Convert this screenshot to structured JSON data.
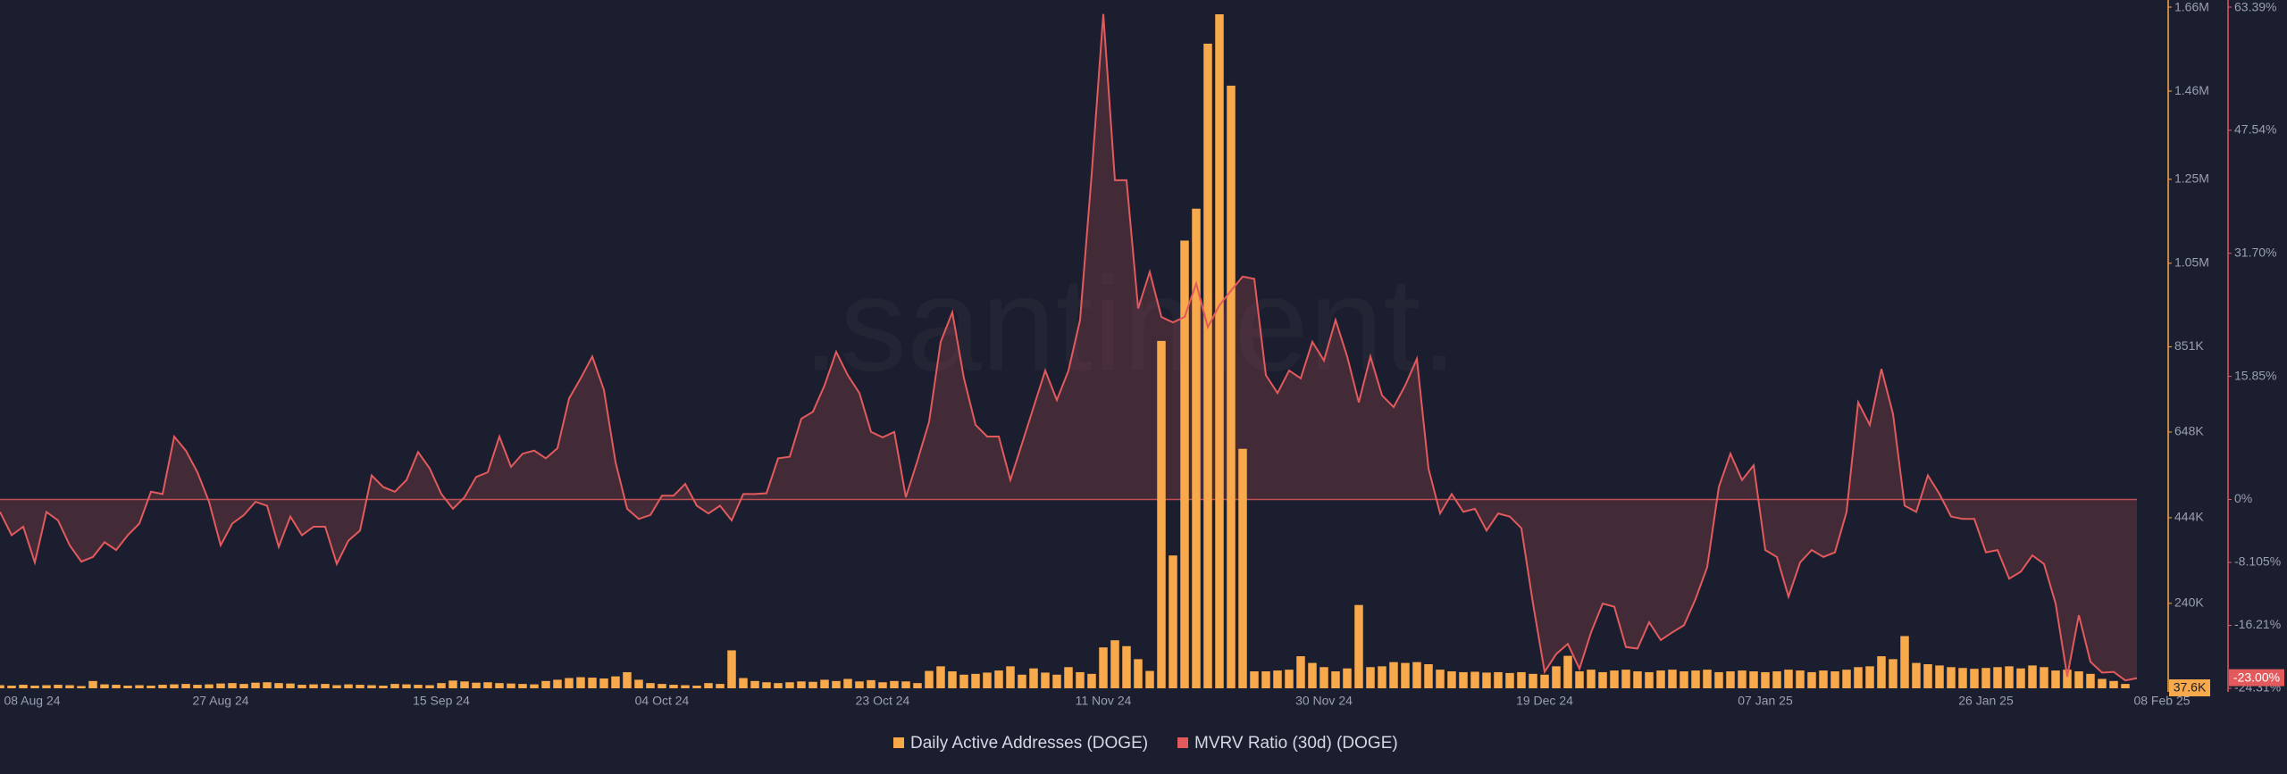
{
  "chart_data": {
    "type": "bar-line",
    "watermark": ".santiment.",
    "categories": [
      "08 Aug 24",
      null,
      null,
      null,
      null,
      null,
      null,
      null,
      null,
      null,
      null,
      null,
      null,
      null,
      null,
      null,
      null,
      null,
      null,
      "27 Aug 24",
      null,
      null,
      null,
      null,
      null,
      null,
      null,
      null,
      null,
      null,
      null,
      null,
      null,
      null,
      null,
      null,
      null,
      null,
      "15 Sep 24",
      null,
      null,
      null,
      null,
      null,
      null,
      null,
      null,
      null,
      null,
      null,
      null,
      null,
      null,
      null,
      null,
      null,
      null,
      "04 Oct 24",
      null,
      null,
      null,
      null,
      null,
      null,
      null,
      null,
      null,
      null,
      null,
      null,
      null,
      null,
      null,
      null,
      null,
      null,
      "23 Oct 24",
      null,
      null,
      null,
      null,
      null,
      null,
      null,
      null,
      null,
      null,
      null,
      null,
      null,
      null,
      null,
      null,
      null,
      null,
      "11 Nov 24",
      null,
      null,
      null,
      null,
      null,
      null,
      null,
      null,
      null,
      null,
      null,
      null,
      null,
      null,
      null,
      null,
      null,
      null,
      "30 Nov 24",
      null,
      null,
      null,
      null,
      null,
      null,
      null,
      null,
      null,
      null,
      null,
      null,
      null,
      null,
      null,
      null,
      null,
      null,
      "19 Dec 24",
      null,
      null,
      null,
      null,
      null,
      null,
      null,
      null,
      null,
      null,
      null,
      null,
      null,
      null,
      null,
      null,
      null,
      null,
      "07 Jan 25",
      null,
      null,
      null,
      null,
      null,
      null,
      null,
      null,
      null,
      null,
      null,
      null,
      null,
      null,
      null,
      null,
      null,
      null,
      "26 Jan 25",
      null,
      null,
      null,
      null,
      null,
      null,
      null,
      null,
      null,
      null,
      null,
      null,
      "08 Feb 25"
    ],
    "series": [
      {
        "name": "Daily Active Addresses (DOGE)",
        "type": "bar",
        "axis": "y",
        "color": "#f7a94b",
        "last_value_label": "37.6K",
        "values": [
          45000,
          44000,
          46000,
          44000,
          45000,
          46000,
          45000,
          43000,
          55000,
          47000,
          46000,
          44000,
          45000,
          44000,
          46000,
          47000,
          48000,
          46000,
          47000,
          49000,
          50000,
          48000,
          51000,
          52000,
          50000,
          49000,
          46000,
          47000,
          48000,
          45000,
          47000,
          46000,
          45000,
          44000,
          48000,
          47000,
          46000,
          45000,
          50000,
          56000,
          54000,
          51000,
          52000,
          50000,
          49000,
          48000,
          47000,
          55000,
          58000,
          62000,
          64000,
          63000,
          61000,
          66000,
          76000,
          58000,
          50000,
          48000,
          46000,
          45000,
          44000,
          50000,
          48000,
          128000,
          62000,
          55000,
          52000,
          50000,
          52000,
          54000,
          53000,
          58000,
          55000,
          60000,
          54000,
          57000,
          52000,
          55000,
          54000,
          50000,
          79000,
          90000,
          78000,
          70000,
          72000,
          75000,
          80000,
          90000,
          70000,
          85000,
          75000,
          70000,
          88000,
          76000,
          72000,
          135000,
          152000,
          138000,
          107000,
          79000,
          865000,
          354000,
          1104000,
          1180000,
          1573000,
          1643000,
          1473000,
          608000,
          78000,
          78000,
          80000,
          82000,
          114000,
          98000,
          88000,
          78000,
          85000,
          236000,
          88000,
          90000,
          100000,
          98000,
          100000,
          95000,
          82000,
          78000,
          76000,
          77000,
          75000,
          76000,
          74000,
          76000,
          72000,
          70000,
          90000,
          115000,
          78000,
          82000,
          76000,
          80000,
          82000,
          78000,
          76000,
          80000,
          82000,
          78000,
          80000,
          82000,
          76000,
          78000,
          80000,
          78000,
          76000,
          78000,
          82000,
          80000,
          76000,
          80000,
          78000,
          82000,
          88000,
          90000,
          114000,
          107000,
          162000,
          98000,
          95000,
          92000,
          88000,
          86000,
          84000,
          86000,
          88000,
          90000,
          85000,
          92000,
          88000,
          80000,
          82000,
          78000,
          72000,
          60000,
          55000,
          48000,
          37600
        ]
      },
      {
        "name": "MVRV Ratio (30d) (DOGE)",
        "type": "line",
        "axis": "y2",
        "color": "#e35a5d",
        "last_value_label": "-23.00%",
        "values": [
          -1.6,
          -4.6,
          -3.5,
          -8.1,
          -1.6,
          -2.7,
          -5.9,
          -8.0,
          -7.4,
          -5.5,
          -6.5,
          -4.6,
          -3.1,
          1.0,
          0.7,
          8.1,
          6.3,
          3.5,
          -0.3,
          -5.9,
          -3.1,
          -2.0,
          -0.3,
          -0.8,
          -6.1,
          -2.2,
          -4.6,
          -3.5,
          -3.5,
          -8.3,
          -5.3,
          -4.0,
          3.1,
          1.6,
          1.0,
          2.5,
          6.1,
          4.0,
          0.7,
          -1.2,
          0.3,
          2.9,
          3.5,
          8.1,
          4.2,
          5.9,
          6.3,
          5.3,
          6.6,
          13.0,
          15.6,
          18.4,
          14.1,
          4.8,
          -1.2,
          -2.5,
          -2.0,
          0.5,
          0.5,
          2.0,
          -0.8,
          -1.8,
          -0.8,
          -2.7,
          0.7,
          0.7,
          0.8,
          5.3,
          5.5,
          10.4,
          11.3,
          14.7,
          19.0,
          16.0,
          13.7,
          8.7,
          8.0,
          8.7,
          0.3,
          5.0,
          10.0,
          20.3,
          24.1,
          15.6,
          9.6,
          8.1,
          8.1,
          2.5,
          7.2,
          11.9,
          16.6,
          12.8,
          16.6,
          23.1,
          41.9,
          62.5,
          41.1,
          41.1,
          24.6,
          29.3,
          23.5,
          22.8,
          23.5,
          27.8,
          22.2,
          25.0,
          26.9,
          28.7,
          28.4,
          16.0,
          13.7,
          16.6,
          15.6,
          20.3,
          17.9,
          23.1,
          18.4,
          12.5,
          18.4,
          13.4,
          11.9,
          14.7,
          18.1,
          4.0,
          -1.8,
          0.7,
          -1.6,
          -1.2,
          -4.0,
          -1.8,
          -2.2,
          -3.7,
          -13.4,
          -22.2,
          -19.9,
          -18.6,
          -21.8,
          -17.1,
          -13.4,
          -13.8,
          -19.0,
          -19.2,
          -15.8,
          -18.1,
          -17.1,
          -16.2,
          -12.8,
          -8.7,
          1.6,
          5.9,
          2.5,
          4.4,
          -6.5,
          -7.4,
          -12.5,
          -8.1,
          -6.5,
          -7.4,
          -6.8,
          -1.6,
          12.5,
          9.6,
          16.8,
          11.0,
          -0.8,
          -1.6,
          3.1,
          0.7,
          -2.2,
          -2.5,
          -2.5,
          -6.8,
          -6.5,
          -10.2,
          -9.3,
          -7.2,
          -8.3,
          -13.4,
          -22.8,
          -14.9,
          -20.9,
          -22.3,
          -22.2,
          -23.3,
          -23.0
        ]
      }
    ],
    "ylim": [
      37600,
      1660000
    ],
    "yticks": [
      {
        "value": 240000,
        "label": "240K"
      },
      {
        "value": 444000,
        "label": "444K"
      },
      {
        "value": 648000,
        "label": "648K"
      },
      {
        "value": 851000,
        "label": "851K"
      },
      {
        "value": 1050000,
        "label": "1.05M"
      },
      {
        "value": 1250000,
        "label": "1.25M"
      },
      {
        "value": 1460000,
        "label": "1.46M"
      },
      {
        "value": 1660000,
        "label": "1.66M"
      }
    ],
    "y2lim": [
      -24.31,
      63.39
    ],
    "y2ticks": [
      {
        "value": -24.31,
        "label": "-24.31%"
      },
      {
        "value": -16.21,
        "label": "-16.21%"
      },
      {
        "value": -8.105,
        "label": "-8.105%"
      },
      {
        "value": 0,
        "label": "0%"
      },
      {
        "value": 15.85,
        "label": "15.85%"
      },
      {
        "value": 31.7,
        "label": "31.70%"
      },
      {
        "value": 47.54,
        "label": "47.54%"
      },
      {
        "value": 63.39,
        "label": "63.39%"
      }
    ],
    "legend": "bottom"
  }
}
